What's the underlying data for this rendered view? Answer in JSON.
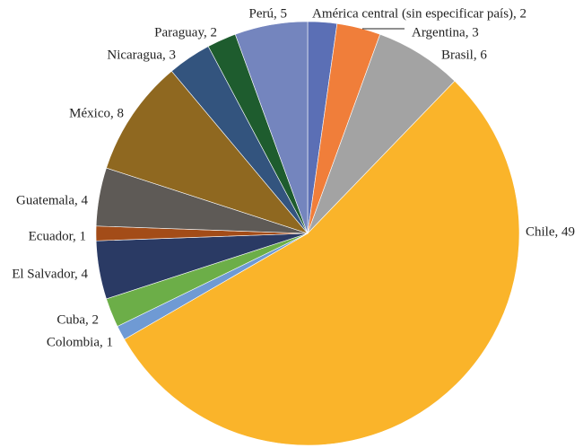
{
  "chart_data": {
    "type": "pie",
    "start_angle": "12 o'clock",
    "direction": "clockwise",
    "legend": "none",
    "slices": [
      {
        "label": "América central (sin especificar país), 2",
        "name": "América central (sin especificar país)",
        "value": 2,
        "color": "#5B6FB5"
      },
      {
        "label": "Argentina, 3",
        "name": "Argentina",
        "value": 3,
        "color": "#F07E3A"
      },
      {
        "label": "Brasil, 6",
        "name": "Brasil",
        "value": 6,
        "color": "#A3A3A3"
      },
      {
        "label": "Chile, 49",
        "name": "Chile",
        "value": 49,
        "color": "#FAB42A"
      },
      {
        "label": "Colombia, 1",
        "name": "Colombia",
        "value": 1,
        "color": "#6F9AD4"
      },
      {
        "label": "Cuba, 2",
        "name": "Cuba",
        "value": 2,
        "color": "#6CAE48"
      },
      {
        "label": "El Salvador, 4",
        "name": "El Salvador",
        "value": 4,
        "color": "#2A3A64"
      },
      {
        "label": "Ecuador, 1",
        "name": "Ecuador",
        "value": 1,
        "color": "#A34C18"
      },
      {
        "label": "Guatemala, 4",
        "name": "Guatemala",
        "value": 4,
        "color": "#5E5A56"
      },
      {
        "label": "México, 8",
        "name": "México",
        "value": 8,
        "color": "#8F6820"
      },
      {
        "label": "Nicaragua, 3",
        "name": "Nicaragua",
        "value": 3,
        "color": "#33547E"
      },
      {
        "label": "Paraguay, 2",
        "name": "Paraguay",
        "value": 2,
        "color": "#1E5C2E"
      },
      {
        "label": "Perú, 5",
        "name": "Perú",
        "value": 5,
        "color": "#7485BE"
      }
    ]
  }
}
